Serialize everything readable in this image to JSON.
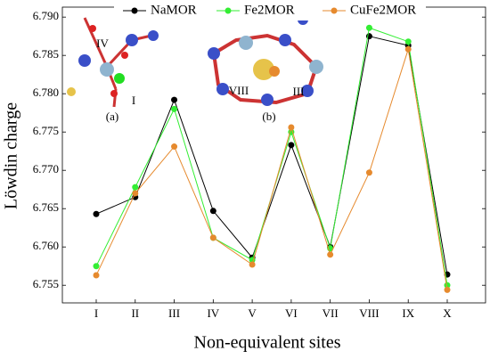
{
  "chart_data": {
    "type": "line",
    "xlabel": "Non-equivalent sites",
    "ylabel": "Löwdin charge",
    "categories": [
      "I",
      "II",
      "III",
      "IV",
      "V",
      "VI",
      "VII",
      "VIII",
      "IX",
      "X"
    ],
    "series": [
      {
        "name": "NaMOR",
        "color": "#000000",
        "values": [
          6.7643,
          6.7665,
          6.7792,
          6.7647,
          6.7586,
          6.7733,
          6.76,
          6.7875,
          6.7863,
          6.7564
        ]
      },
      {
        "name": "Fe2MOR",
        "color": "#33ee33",
        "values": [
          6.7575,
          6.7678,
          6.778,
          6.7612,
          6.7583,
          6.775,
          6.7598,
          6.7886,
          6.7868,
          6.755
        ]
      },
      {
        "name": "CuFe2MOR",
        "color": "#e68a2e",
        "values": [
          6.7563,
          6.767,
          6.7731,
          6.7612,
          6.7577,
          6.7756,
          6.759,
          6.7697,
          6.7858,
          6.7544
        ]
      }
    ],
    "ylim": [
      6.7527,
      6.7913
    ],
    "yticks": [
      6.755,
      {
        "value": 6.76,
        "label": "6.760"
      },
      6.765,
      {
        "value": 6.77,
        "label": "6.770"
      },
      6.775,
      {
        "value": 6.78,
        "label": "6.780"
      },
      6.785,
      {
        "value": 6.79,
        "label": "6.790"
      }
    ],
    "legend": "top",
    "annotations": [
      "IV",
      "I",
      "(a)",
      "VIII",
      "III",
      "(b)"
    ]
  }
}
